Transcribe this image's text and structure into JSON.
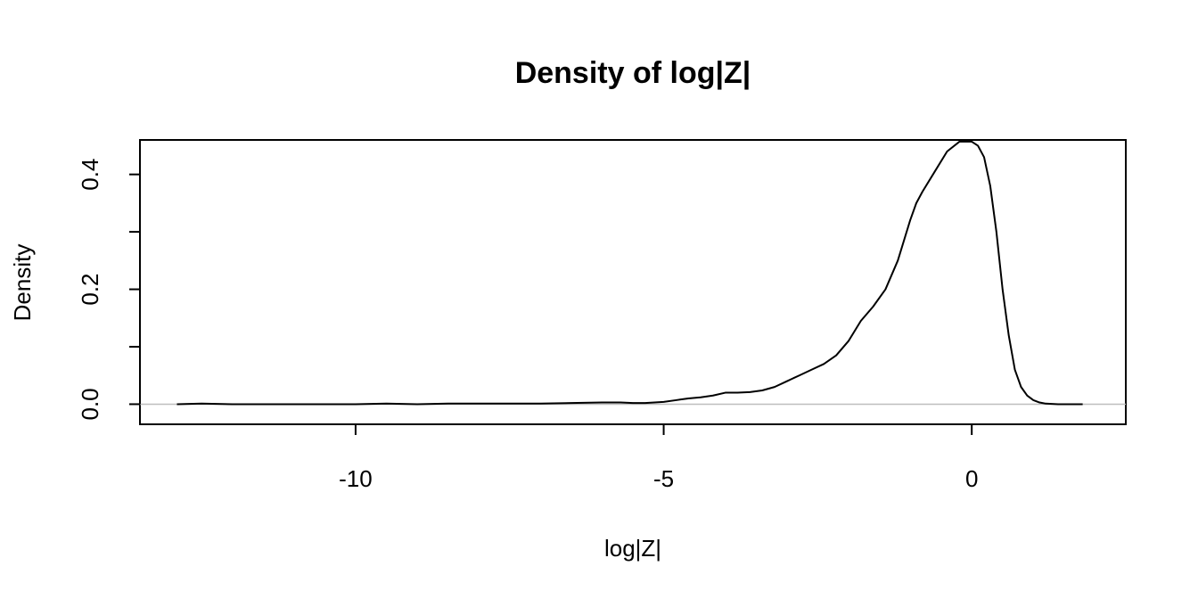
{
  "chart_data": {
    "type": "line",
    "title": "Density of log|Z|",
    "xlabel": "log|Z|",
    "ylabel": "Density",
    "xlim": [
      -13.5,
      2.5
    ],
    "ylim": [
      -0.035,
      0.46
    ],
    "x_ticks": [
      -10,
      -5,
      0
    ],
    "x_tick_labels": [
      "-10",
      "-5",
      "0"
    ],
    "y_ticks": [
      0.0,
      0.1,
      0.2,
      0.3,
      0.4
    ],
    "y_tick_labels": [
      "0.0",
      "",
      "0.2",
      "",
      "0.4"
    ],
    "baseline": 0,
    "grid": false,
    "legend": "none",
    "line_color": "#000000",
    "baseline_color": "#bebebe",
    "series": [
      {
        "x": [
          -12.9,
          -12.5,
          -12.0,
          -11.5,
          -11.0,
          -10.5,
          -10.0,
          -9.5,
          -9.0,
          -8.5,
          -8.0,
          -7.5,
          -7.0,
          -6.5,
          -6.0,
          -5.7,
          -5.5,
          -5.3,
          -5.0,
          -4.8,
          -4.6,
          -4.4,
          -4.2,
          -4.0,
          -3.8,
          -3.6,
          -3.4,
          -3.2,
          -3.0,
          -2.8,
          -2.6,
          -2.4,
          -2.2,
          -2.0,
          -1.8,
          -1.6,
          -1.4,
          -1.2,
          -1.0,
          -0.9,
          -0.8,
          -0.6,
          -0.4,
          -0.2,
          0.0,
          0.1,
          0.2,
          0.3,
          0.4,
          0.5,
          0.6,
          0.7,
          0.8,
          0.9,
          1.0,
          1.1,
          1.2,
          1.4,
          1.6,
          1.8
        ],
        "y": [
          0.0,
          0.001,
          0.0,
          0.0,
          0.0,
          0.0,
          0.0,
          0.001,
          0.0,
          0.001,
          0.001,
          0.001,
          0.001,
          0.002,
          0.003,
          0.003,
          0.002,
          0.002,
          0.004,
          0.007,
          0.01,
          0.012,
          0.015,
          0.02,
          0.02,
          0.021,
          0.024,
          0.03,
          0.04,
          0.05,
          0.06,
          0.07,
          0.085,
          0.11,
          0.145,
          0.17,
          0.2,
          0.25,
          0.32,
          0.35,
          0.37,
          0.405,
          0.44,
          0.457,
          0.457,
          0.45,
          0.43,
          0.38,
          0.3,
          0.2,
          0.12,
          0.06,
          0.03,
          0.015,
          0.007,
          0.003,
          0.001,
          0.0,
          0.0,
          0.0
        ]
      }
    ]
  }
}
